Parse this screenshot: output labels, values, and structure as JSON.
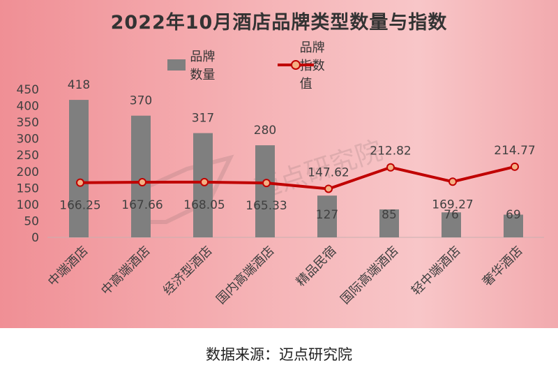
{
  "chart_data": {
    "type": "bar",
    "title": "2022年10月酒店品牌类型数量与指数",
    "categories": [
      "中端酒店",
      "中高端酒店",
      "经济型酒店",
      "国内高端酒店",
      "精品民宿",
      "国际高端酒店",
      "轻中端酒店",
      "奢华酒店"
    ],
    "series": [
      {
        "name": "品牌数量",
        "type": "bar",
        "color": "#7f7f7f",
        "values": [
          418,
          370,
          317,
          280,
          127,
          85,
          76,
          69
        ]
      },
      {
        "name": "品牌指数值",
        "type": "line",
        "color": "#c00000",
        "marker_color": "#f4b084",
        "values": [
          166.25,
          167.66,
          168.05,
          165.33,
          147.62,
          212.82,
          169.27,
          214.77
        ]
      }
    ],
    "ylim": [
      0,
      450
    ],
    "yticks": [
      0,
      50,
      100,
      150,
      200,
      250,
      300,
      350,
      400,
      450
    ],
    "grid": false,
    "legend_position": "top"
  },
  "watermark": "迈点研究院",
  "source_note": "数据来源：迈点研究院"
}
